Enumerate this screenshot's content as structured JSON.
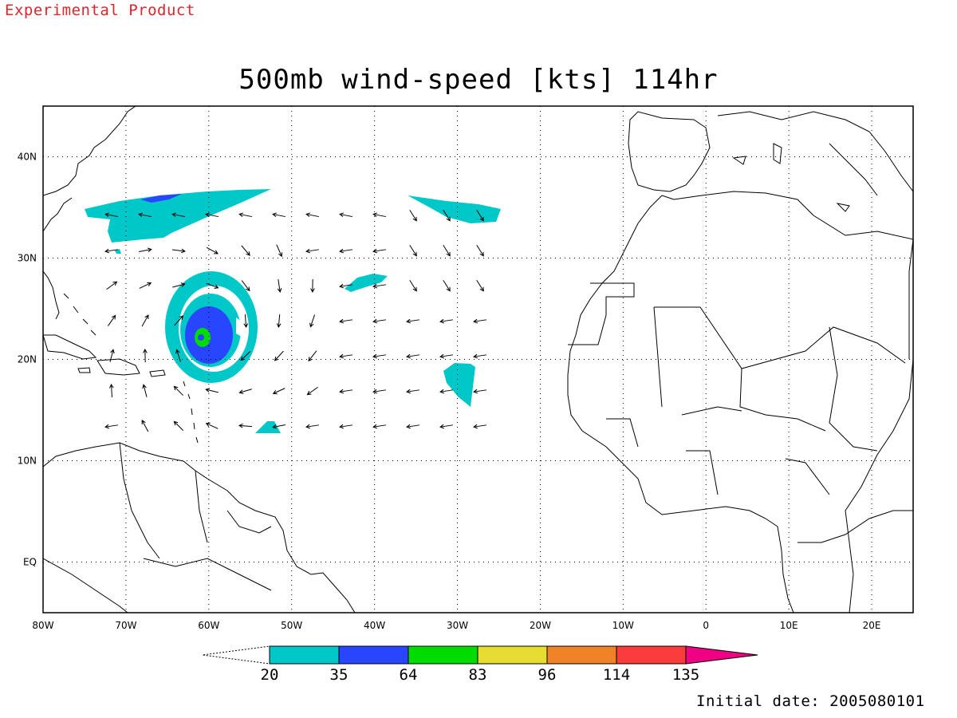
{
  "banner": "Experimental Product",
  "title": "500mb wind-speed [kts] 114hr",
  "footer": "Initial date: 2005080101",
  "map": {
    "extent": {
      "lon": [
        -80,
        25
      ],
      "lat": [
        -5,
        45
      ]
    },
    "lon_ticks": [
      {
        "v": -80,
        "label": "80W"
      },
      {
        "v": -70,
        "label": "70W"
      },
      {
        "v": -60,
        "label": "60W"
      },
      {
        "v": -50,
        "label": "50W"
      },
      {
        "v": -40,
        "label": "40W"
      },
      {
        "v": -30,
        "label": "30W"
      },
      {
        "v": -20,
        "label": "20W"
      },
      {
        "v": -10,
        "label": "10W"
      },
      {
        "v": 0,
        "label": "0"
      },
      {
        "v": 10,
        "label": "10E"
      },
      {
        "v": 20,
        "label": "20E"
      }
    ],
    "lat_ticks": [
      {
        "v": 0,
        "label": "EQ"
      },
      {
        "v": 10,
        "label": "10N"
      },
      {
        "v": 20,
        "label": "20N"
      },
      {
        "v": 30,
        "label": "30N"
      },
      {
        "v": 40,
        "label": "40N"
      }
    ],
    "gridlines": true,
    "features": [
      "North America east coast",
      "Caribbean islands",
      "South America",
      "Iberian Peninsula",
      "Africa"
    ],
    "wind_regions": [
      {
        "name": "hurricane-ring",
        "level": "20-35",
        "center": [
          -60.5,
          22.5
        ],
        "note": "closed vortex near 22N 60W"
      },
      {
        "name": "hurricane-35-64",
        "level": "35-64",
        "center": [
          -60.5,
          22.5
        ]
      },
      {
        "name": "hurricane-core",
        "level": "64-83",
        "center": [
          -60.5,
          22.5
        ]
      }
    ]
  },
  "colorbar": {
    "levels": [
      "20",
      "35",
      "64",
      "83",
      "96",
      "114",
      "135"
    ],
    "colors": [
      "#00c8c8",
      "#2846ff",
      "#00dc00",
      "#e6dc32",
      "#f08228",
      "#fa3c3c",
      "#f00082"
    ],
    "triangle_left_color": "#ffffff",
    "triangle_right_color": "#f00082"
  },
  "colors": {
    "c20": "#00c8c8",
    "c35": "#2846ff",
    "c64": "#00dc00",
    "banner": "#e0242c"
  }
}
